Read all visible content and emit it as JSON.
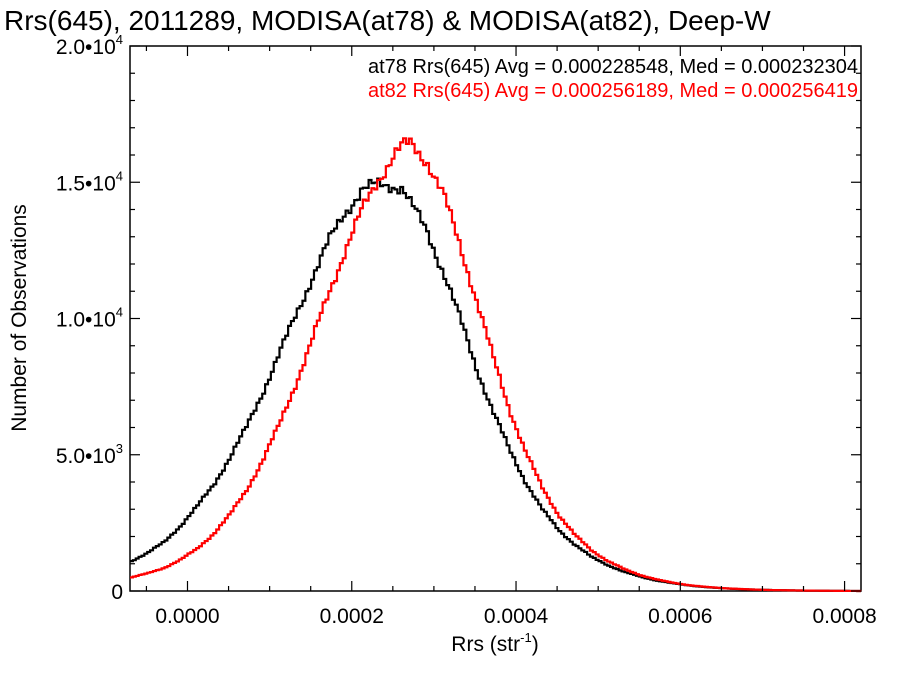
{
  "chart_data": {
    "type": "line",
    "title": "Rrs(645), 2011289, MODISA(at78) & MODISA(at82), Deep-W",
    "xlabel": "Rrs (str",
    "xlabel_sup": "-1",
    "xlabel_close": ")",
    "ylabel": "Number of Observations",
    "xlim": [
      -7e-05,
      0.00082
    ],
    "ylim": [
      0,
      20000
    ],
    "x_ticks": [
      {
        "value": 0.0,
        "label": "0.0000"
      },
      {
        "value": 0.0002,
        "label": "0.0002"
      },
      {
        "value": 0.0004,
        "label": "0.0004"
      },
      {
        "value": 0.0006,
        "label": "0.0006"
      },
      {
        "value": 0.0008,
        "label": "0.0008"
      }
    ],
    "y_ticks": [
      {
        "value": 0,
        "mantissa": "0",
        "exp": ""
      },
      {
        "value": 5000,
        "mantissa": "5.0•10",
        "exp": "3"
      },
      {
        "value": 10000,
        "mantissa": "1.0•10",
        "exp": "4"
      },
      {
        "value": 15000,
        "mantissa": "1.5•10",
        "exp": "4"
      },
      {
        "value": 20000,
        "mantissa": "2.0•10",
        "exp": "4"
      }
    ],
    "annotations": [
      {
        "text": "at78 Rrs(645) Avg = 0.000228548, Med = 0.000232304",
        "color": "#000000"
      },
      {
        "text": "at82 Rrs(645) Avg = 0.000256189, Med = 0.000256419",
        "color": "#ff0000"
      }
    ],
    "x": [
      -7e-05,
      -5e-05,
      -3e-05,
      -1e-05,
      1e-05,
      3e-05,
      5e-05,
      7e-05,
      9e-05,
      0.00011,
      0.00013,
      0.00015,
      0.00017,
      0.00019,
      0.00021,
      0.00023,
      0.00025,
      0.00026,
      0.00027,
      0.00029,
      0.00031,
      0.00033,
      0.00035,
      0.00037,
      0.00039,
      0.00041,
      0.00043,
      0.00045,
      0.00047,
      0.00049,
      0.00051,
      0.00053,
      0.00055,
      0.00057,
      0.00059,
      0.00061,
      0.00063,
      0.00065,
      0.00067,
      0.00069,
      0.00071,
      0.00073,
      0.00075,
      0.00077,
      0.00079,
      0.00082
    ],
    "series": [
      {
        "name": "at78",
        "color": "#000000",
        "values": [
          1100,
          1400,
          1800,
          2400,
          3100,
          3900,
          4900,
          6000,
          7300,
          8700,
          10100,
          11500,
          12800,
          13900,
          14700,
          14900,
          14900,
          14800,
          14200,
          13200,
          11700,
          10000,
          8200,
          6600,
          5200,
          4000,
          3000,
          2250,
          1700,
          1250,
          950,
          700,
          520,
          380,
          280,
          200,
          140,
          100,
          70,
          50,
          35,
          25,
          15,
          10,
          5,
          0
        ]
      },
      {
        "name": "at82",
        "color": "#ff0000",
        "values": [
          500,
          650,
          850,
          1150,
          1550,
          2100,
          2800,
          3700,
          4800,
          6100,
          7600,
          9200,
          10900,
          12500,
          13900,
          15100,
          16000,
          16300,
          16400,
          15800,
          14500,
          12700,
          10700,
          8600,
          6700,
          5100,
          3800,
          2800,
          2050,
          1500,
          1100,
          800,
          580,
          420,
          300,
          210,
          150,
          105,
          75,
          50,
          35,
          25,
          15,
          10,
          5,
          0
        ]
      }
    ],
    "grid": false,
    "legend": "top-right"
  }
}
